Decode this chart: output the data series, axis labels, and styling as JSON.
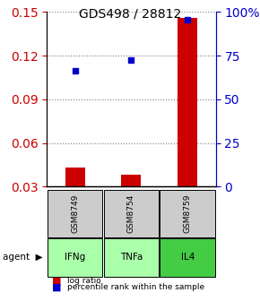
{
  "title": "GDS498 / 28812",
  "samples": [
    "GSM8749",
    "GSM8754",
    "GSM8759"
  ],
  "agents": [
    "IFNg",
    "TNFa",
    "IL4"
  ],
  "log_ratios": [
    0.043,
    0.038,
    0.146
  ],
  "percentile_ranks": [
    0.665,
    0.725,
    0.955
  ],
  "left_ylim": [
    0.03,
    0.15
  ],
  "left_yticks": [
    0.03,
    0.06,
    0.09,
    0.12,
    0.15
  ],
  "right_ylim": [
    0,
    100
  ],
  "right_yticks": [
    0,
    25,
    50,
    75,
    100
  ],
  "right_yticklabels": [
    "0",
    "25",
    "50",
    "75",
    "100%"
  ],
  "bar_color": "#cc0000",
  "dot_color": "#0000cc",
  "grid_color": "#808080",
  "sample_box_color": "#cccccc",
  "agent_box_color_light": "#aaffaa",
  "agent_box_color_dark": "#44cc44",
  "title_color": "#000000",
  "left_tick_color": "#cc0000",
  "right_tick_color": "#0000cc"
}
